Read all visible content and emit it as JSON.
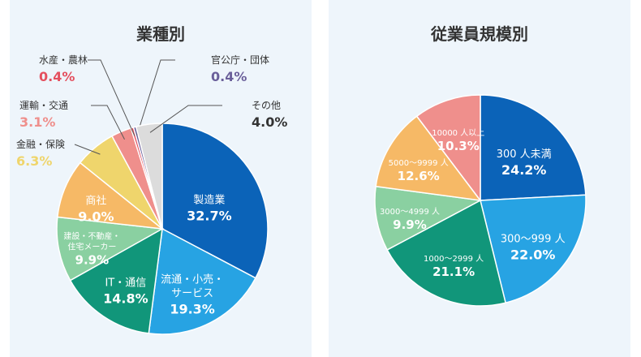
{
  "chart_data": [
    {
      "type": "pie",
      "title": "業種別",
      "slices": [
        {
          "label": "製造業",
          "value": 32.7,
          "display": "32.7%",
          "color": "#0b63b8"
        },
        {
          "label": "流通・小売・サービス",
          "value": 19.3,
          "display": "19.3%",
          "color": "#27a3e3"
        },
        {
          "label": "IT・通信",
          "value": 14.8,
          "display": "14.8%",
          "color": "#11967a"
        },
        {
          "label": "建設・不動産・住宅メーカー",
          "value": 9.9,
          "display": "9.9%",
          "color": "#8ad0a1"
        },
        {
          "label": "商社",
          "value": 9.0,
          "display": "9.0%",
          "color": "#f6b966"
        },
        {
          "label": "金融・保険",
          "value": 6.3,
          "display": "6.3%",
          "color": "#efd56c"
        },
        {
          "label": "運輸・交通",
          "value": 3.1,
          "display": "3.1%",
          "color": "#ef8f8c"
        },
        {
          "label": "水産・農林",
          "value": 0.4,
          "display": "0.4%",
          "color": "#e4505f"
        },
        {
          "label": "官公庁・団体",
          "value": 0.4,
          "display": "0.4%",
          "color": "#6a5f9a"
        },
        {
          "label": "その他",
          "value": 4.0,
          "display": "4.0%",
          "color": "#dcdcdc"
        }
      ]
    },
    {
      "type": "pie",
      "title": "従業員規模別",
      "slices": [
        {
          "label": "300 人未満",
          "value": 24.2,
          "display": "24.2%",
          "color": "#0b63b8"
        },
        {
          "label": "300〜999 人",
          "value": 22.0,
          "display": "22.0%",
          "color": "#27a3e3"
        },
        {
          "label": "1000〜2999 人",
          "value": 21.1,
          "display": "21.1%",
          "color": "#11967a"
        },
        {
          "label": "3000〜4999 人",
          "value": 9.9,
          "display": "9.9%",
          "color": "#8ad0a1"
        },
        {
          "label": "5000〜9999 人",
          "value": 12.6,
          "display": "12.6%",
          "color": "#f6b966"
        },
        {
          "label": "10000 人以上",
          "value": 10.3,
          "display": "10.3%",
          "color": "#ef8f8c"
        }
      ]
    }
  ]
}
